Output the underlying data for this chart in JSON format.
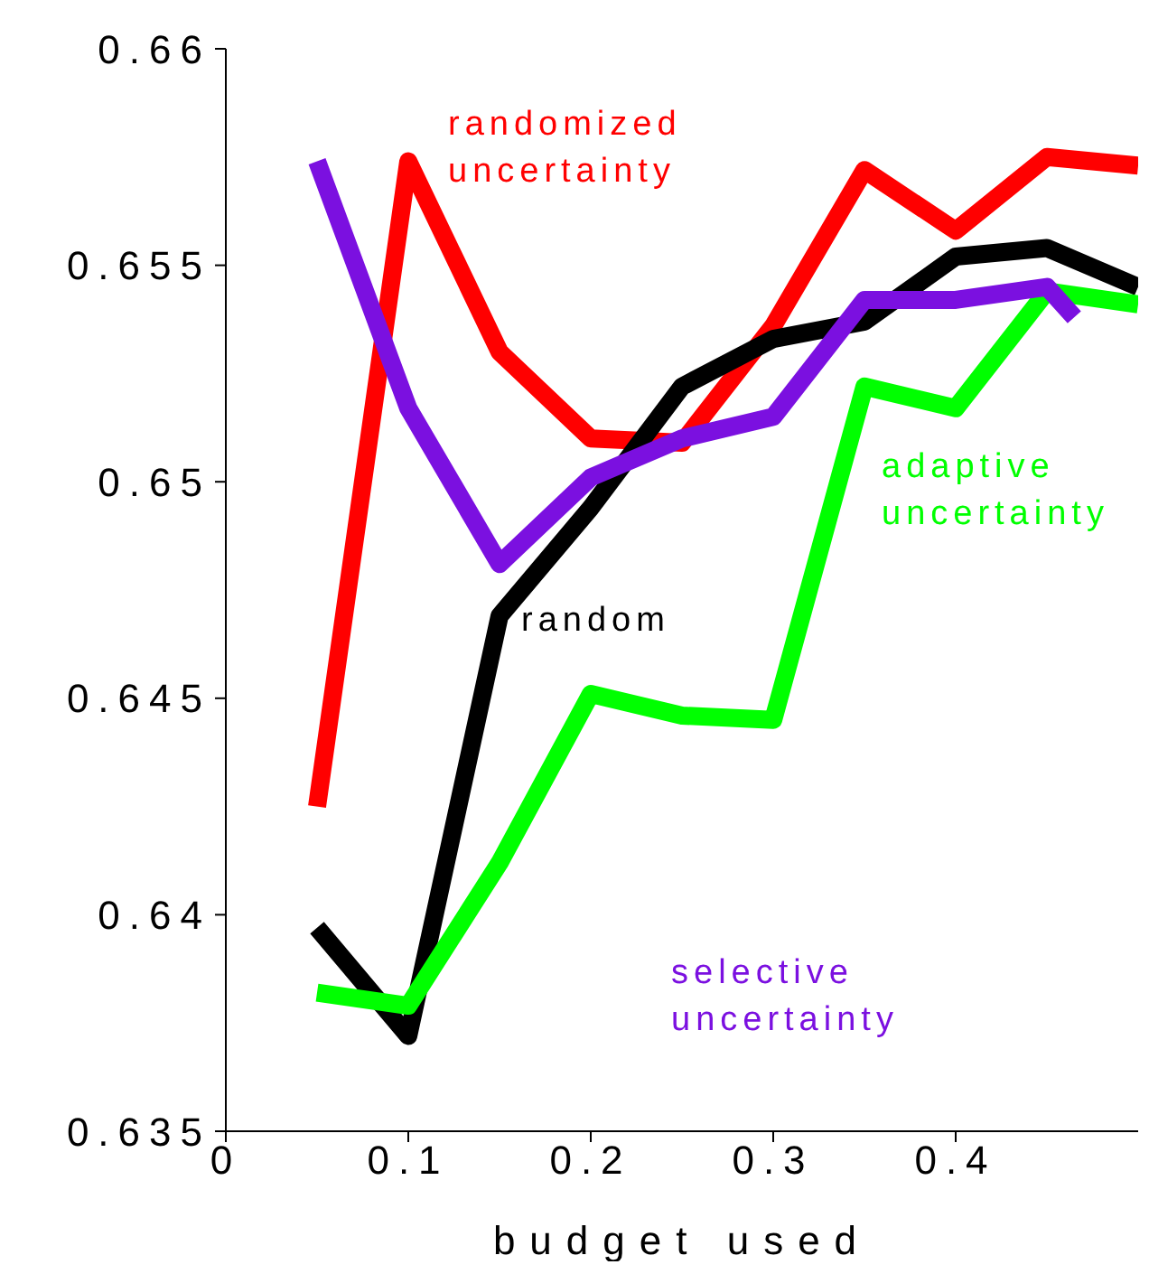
{
  "chart_data": {
    "type": "line",
    "xlabel": "budget used",
    "x": [
      0.05,
      0.1,
      0.15,
      0.2,
      0.25,
      0.3,
      0.35,
      0.4,
      0.45,
      0.5
    ],
    "xlim": [
      0,
      0.5
    ],
    "xticks": [
      0,
      0.1,
      0.2,
      0.3,
      0.4
    ],
    "ylim": [
      0.635,
      0.66
    ],
    "yticks": [
      0.635,
      0.64,
      0.645,
      0.65,
      0.655,
      0.66
    ],
    "marker": "none",
    "line_style": "solid",
    "series": [
      {
        "name": "randomized uncertainty",
        "color": "#ff0000",
        "values": [
          0.6425,
          0.6574,
          0.653,
          0.651,
          0.6509,
          0.6536,
          0.6572,
          0.6558,
          0.6575,
          0.6573
        ]
      },
      {
        "name": "random",
        "color": "#000000",
        "values": [
          0.6397,
          0.6372,
          0.6469,
          0.6494,
          0.6522,
          0.6533,
          0.6537,
          0.6552,
          0.6554,
          0.6545
        ]
      },
      {
        "name": "adaptive uncertainty",
        "color": "#00ff00",
        "values": [
          0.6382,
          0.6379,
          0.6412,
          0.6451,
          0.6446,
          0.6445,
          0.6522,
          0.6517,
          0.6544,
          0.6541
        ]
      },
      {
        "name": "selective uncertainty",
        "color": "#7b10e0",
        "x": [
          0.05,
          0.1,
          0.15,
          0.2,
          0.25,
          0.3,
          0.35,
          0.4,
          0.45,
          0.465
        ],
        "values": [
          0.6574,
          0.6517,
          0.6481,
          0.6501,
          0.651,
          0.6515,
          0.6542,
          0.6542,
          0.6545,
          0.6538
        ]
      }
    ]
  }
}
